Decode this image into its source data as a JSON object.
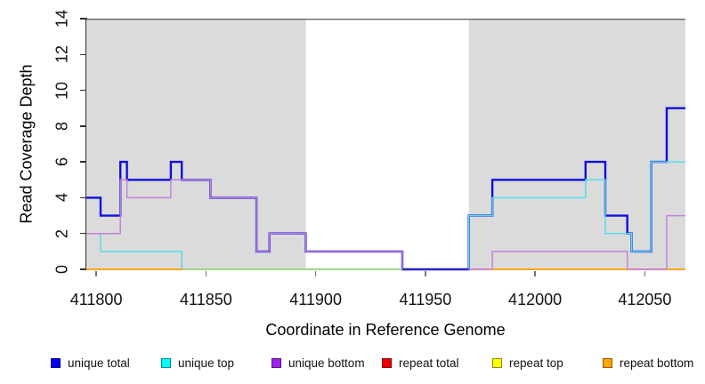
{
  "chart_data": {
    "type": "line",
    "subtype": "step-coverage",
    "xlabel": "Coordinate in Reference Genome",
    "ylabel": "Read Coverage Depth",
    "xlim": [
      411795.5,
      412068.5
    ],
    "ylim": [
      0,
      14
    ],
    "x_ticks": [
      "411800",
      "411850",
      "411900",
      "411950",
      "412000",
      "412050"
    ],
    "x_tick_values": [
      411800,
      411850,
      411900,
      411950,
      412000,
      412050
    ],
    "y_ticks": [
      "0",
      "2",
      "4",
      "6",
      "8",
      "10",
      "12",
      "14"
    ],
    "y_tick_values": [
      0,
      2,
      4,
      6,
      8,
      10,
      12,
      14
    ],
    "grid": false,
    "legend_position": "bottom",
    "background_shading": {
      "color": "#DBDBDB",
      "regions": [
        [
          411795.5,
          411895.5
        ],
        [
          411969.8,
          412068.5
        ]
      ]
    },
    "axis_colors": {
      "axis_line": "#303030",
      "x_tick": "#757575",
      "y_tick": "#303030",
      "top_border": "#4A4A4A"
    },
    "series": [
      {
        "name": "unique total",
        "color": "#0F0FDC",
        "line_width": 2.4,
        "steps": [
          [
            411795.5,
            4
          ],
          [
            411802,
            3
          ],
          [
            411811,
            6
          ],
          [
            411814,
            5
          ],
          [
            411834,
            6
          ],
          [
            411839,
            5
          ],
          [
            411852,
            4
          ],
          [
            411873,
            1
          ],
          [
            411879,
            2
          ],
          [
            411895.5,
            1
          ],
          [
            411939.5,
            0
          ],
          [
            411969.8,
            3
          ],
          [
            411980.5,
            5
          ],
          [
            412023,
            6
          ],
          [
            412032,
            3
          ],
          [
            412042,
            2
          ],
          [
            412044,
            1
          ],
          [
            412053,
            6
          ],
          [
            412060,
            9
          ]
        ]
      },
      {
        "name": "unique top",
        "color": "#58DCEC",
        "line_width": 1.5,
        "steps": [
          [
            411795.5,
            2
          ],
          [
            411802,
            1
          ],
          [
            411839,
            0
          ],
          [
            411969.8,
            3
          ],
          [
            411980.5,
            4
          ],
          [
            412023,
            5
          ],
          [
            412032,
            2
          ],
          [
            412044,
            1
          ],
          [
            412053,
            6
          ]
        ]
      },
      {
        "name": "unique bottom",
        "color": "#C183D9",
        "line_width": 1.5,
        "steps": [
          [
            411795.5,
            2
          ],
          [
            411811,
            5
          ],
          [
            411814,
            4
          ],
          [
            411834,
            5
          ],
          [
            411852,
            4
          ],
          [
            411873,
            1
          ],
          [
            411879,
            2
          ],
          [
            411895.5,
            1
          ],
          [
            411939.5,
            0
          ],
          [
            411980.5,
            1
          ],
          [
            412042,
            0
          ],
          [
            412060,
            3
          ]
        ]
      },
      {
        "name": "repeat total",
        "color": "#E60000",
        "line_width": 1.5,
        "steps": [
          [
            411795.5,
            0
          ]
        ]
      },
      {
        "name": "repeat top",
        "color": "#FFFF00",
        "line_width": 1.5,
        "steps": [
          [
            411795.5,
            0
          ]
        ]
      },
      {
        "name": "repeat bottom",
        "color": "#FFA320",
        "line_width": 1.8,
        "steps": [
          [
            411795.5,
            0
          ]
        ]
      }
    ],
    "baseline_visible_segments": [
      {
        "from": 411795.5,
        "to": 411839.5,
        "color": "#FFA320"
      },
      {
        "from": 411839.5,
        "to": 411939.5,
        "color": "#93DA9B"
      },
      {
        "from": 411939.5,
        "to": 411969.8,
        "color": "#0F0FDC"
      },
      {
        "from": 411969.8,
        "to": 411980.5,
        "color": "#C183D9"
      },
      {
        "from": 411980.5,
        "to": 412042.0,
        "color": "#FFA320"
      },
      {
        "from": 412042.0,
        "to": 412060.0,
        "color": "#C183D9"
      },
      {
        "from": 412060.0,
        "to": 412068.5,
        "color": "#FFA320"
      }
    ],
    "legend": [
      {
        "label": "unique total",
        "color": "#0000EE"
      },
      {
        "label": "unique top",
        "color": "#00FFFF"
      },
      {
        "label": "unique bottom",
        "color": "#A020F0"
      },
      {
        "label": "repeat total",
        "color": "#EE0000"
      },
      {
        "label": "repeat top",
        "color": "#FFFF00"
      },
      {
        "label": "repeat bottom",
        "color": "#FFA500"
      }
    ]
  }
}
